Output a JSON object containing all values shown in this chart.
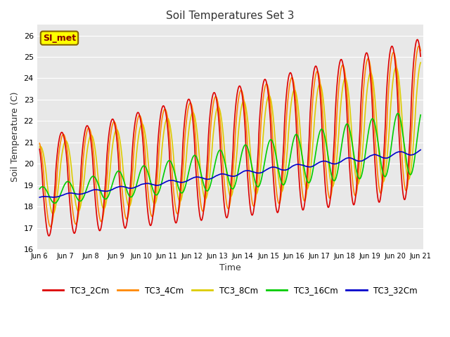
{
  "title": "Soil Temperatures Set 3",
  "xlabel": "Time",
  "ylabel": "Soil Temperature (C)",
  "ylim": [
    16.0,
    26.5
  ],
  "yticks": [
    16.0,
    17.0,
    18.0,
    19.0,
    20.0,
    21.0,
    22.0,
    23.0,
    24.0,
    25.0,
    26.0
  ],
  "bg_color": "#e8e8e8",
  "fig_color": "#ffffff",
  "grid_color": "#ffffff",
  "annotation_label": "SI_met",
  "annotation_bg": "#ffff00",
  "annotation_border": "#886600",
  "series": {
    "TC3_2Cm": {
      "color": "#dd0000",
      "lw": 1.2
    },
    "TC3_4Cm": {
      "color": "#ff8800",
      "lw": 1.2
    },
    "TC3_8Cm": {
      "color": "#ddcc00",
      "lw": 1.2
    },
    "TC3_16Cm": {
      "color": "#00cc00",
      "lw": 1.2
    },
    "TC3_32Cm": {
      "color": "#0000cc",
      "lw": 1.2
    }
  },
  "xtick_labels": [
    "Jun 6",
    "Jun 7",
    "Jun 8",
    "Jun 9",
    "Jun 10",
    "Jun 11",
    "Jun 12",
    "Jun 13",
    "Jun 14",
    "Jun 15",
    "Jun 16",
    "Jun 17",
    "Jun 18",
    "Jun 19",
    "Jun 20",
    "Jun 21"
  ],
  "xstart": 6,
  "xend": 21,
  "n_points": 1440
}
